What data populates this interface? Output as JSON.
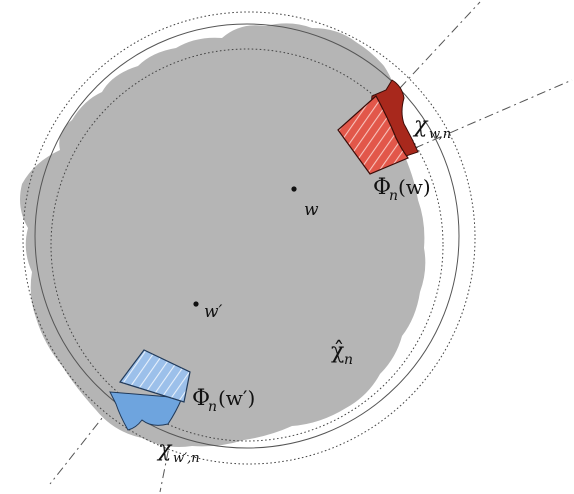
{
  "labels": {
    "w": "w",
    "w_prime": "w′",
    "hat_chi": "χ̂",
    "hat_chi_sub": "n",
    "phi_w_main": "Φ",
    "phi_w_sub": "n",
    "phi_w_arg": "(w)",
    "phi_wp_main": "Φ",
    "phi_wp_sub": "n",
    "phi_wp_arg": "(w′)",
    "chi_w_main": "χ",
    "chi_w_sub": "w,n",
    "chi_wp_main": "χ",
    "chi_wp_sub": "w′,n"
  },
  "colors": {
    "blob": "#b5b5b5",
    "red_fill": "#d94a3a",
    "red_dark": "#a3281c",
    "blue_fill": "#6ea4de",
    "blue_light": "#a9c9ee",
    "line": "#555555"
  }
}
